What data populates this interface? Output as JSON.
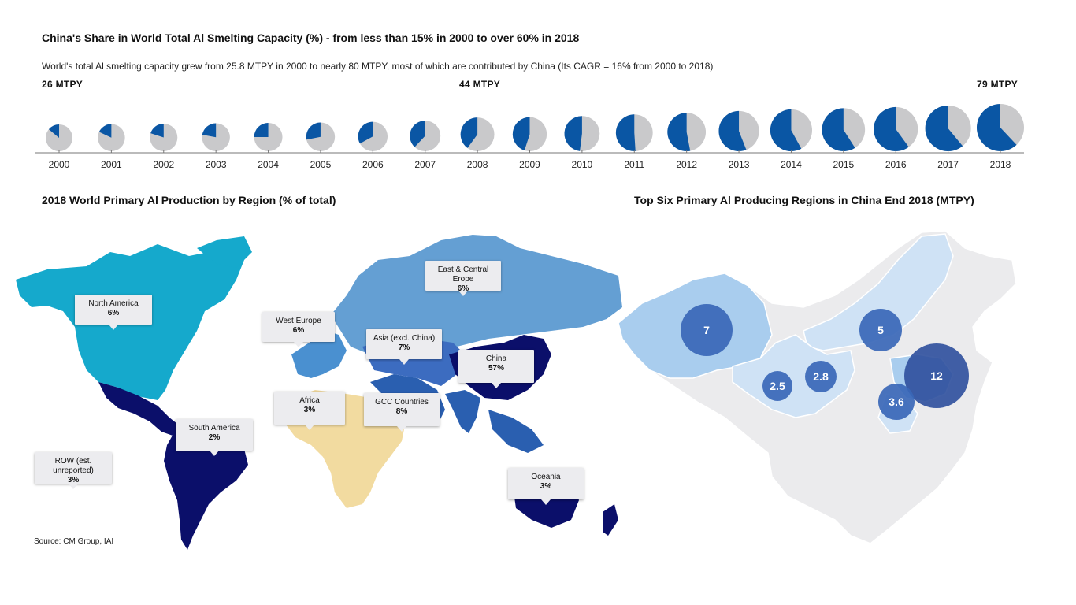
{
  "header": {
    "title": "China's Share in World Total Al Smelting Capacity (%) - from less than 15% in 2000 to over 60% in 2018",
    "subtitle": "World's total Al smelting capacity grew from 25.8 MTPY in 2000 to nearly 80 MTPY, most of which are contributed by China (Its CAGR = 16% from 2000 to 2018)"
  },
  "capacity_callouts": {
    "y2000": "26 MTPY",
    "y2008": "44 MTPY",
    "y2018": "79 MTPY"
  },
  "colors": {
    "china": "#0a56a4",
    "rest": "#c9c9cb",
    "map_light": "#a9cdee",
    "bubble": "#3a67b7"
  },
  "map_section": {
    "title": "2018 World Primary Al Production by Region (% of total)",
    "source": "Source: CM Group, IAI",
    "regions": [
      {
        "name": "North America",
        "value": "6%"
      },
      {
        "name": "West Europe",
        "value": "6%"
      },
      {
        "name": "East & Central Erope",
        "value": "6%"
      },
      {
        "name": "Asia (excl. China)",
        "value": "7%"
      },
      {
        "name": "China",
        "value": "57%"
      },
      {
        "name": "Africa",
        "value": "3%"
      },
      {
        "name": "GCC Countries",
        "value": "8%"
      },
      {
        "name": "South America",
        "value": "2%"
      },
      {
        "name": "ROW (est. unreported)",
        "value": "3%"
      },
      {
        "name": "Oceania",
        "value": "3%"
      }
    ]
  },
  "china_section": {
    "title": "Top Six Primary Al Producing Regions in China End 2018 (MTPY)"
  },
  "chart_data": [
    {
      "type": "pie",
      "x": [
        "2000",
        "2001",
        "2002",
        "2003",
        "2004",
        "2005",
        "2006",
        "2007",
        "2008",
        "2009",
        "2010",
        "2011",
        "2012",
        "2013",
        "2014",
        "2015",
        "2016",
        "2017",
        "2018"
      ],
      "china_share_pct": [
        14,
        18,
        20,
        22,
        25,
        28,
        33,
        38,
        40,
        45,
        48,
        51,
        53,
        56,
        58,
        59,
        60,
        61,
        62
      ],
      "total_capacity_mtpy": [
        26,
        27,
        28,
        29,
        30,
        31,
        33,
        36,
        44,
        45,
        48,
        52,
        56,
        61,
        65,
        68,
        71,
        75,
        79
      ]
    },
    {
      "type": "bubble",
      "values": [
        7,
        5,
        2.5,
        2.8,
        12,
        3.6
      ]
    }
  ]
}
